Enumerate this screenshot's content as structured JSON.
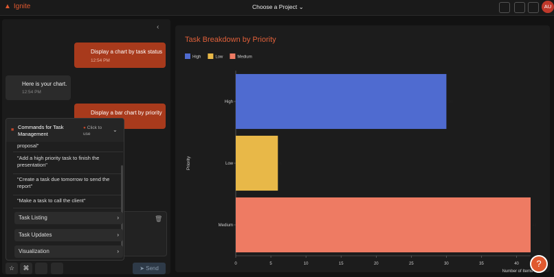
{
  "header": {
    "brand": "Ignite",
    "project_picker": "Choose a Project",
    "avatar": "AU"
  },
  "chat": {
    "messages": [
      {
        "role": "user",
        "text": "Display a chart by task status",
        "time": "12:54 PM"
      },
      {
        "role": "bot",
        "text": "Here is your chart.",
        "time": "12:54 PM"
      },
      {
        "role": "user",
        "text": "Display a bar chart by priority"
      }
    ]
  },
  "commands": {
    "title": "Commands for Task Management",
    "hint": "Click to use",
    "items": [
      "proposal\"",
      "\"Add a high priority task to finish the presentation\"",
      "\"Create a task due tomorrow to send the report\"",
      "\"Make a task to call the client\""
    ],
    "sections": [
      "Task Listing",
      "Task Updates",
      "Visualization"
    ]
  },
  "input": {
    "send": "Send"
  },
  "help": "?",
  "chart_data": {
    "type": "hbar",
    "title": "Task Breakdown by Priority",
    "categories": [
      "High",
      "Low",
      "Medium"
    ],
    "series": [
      {
        "name": "High",
        "color": "#4f6bd0"
      },
      {
        "name": "Low",
        "color": "#e8b848"
      },
      {
        "name": "Medium",
        "color": "#ee7b63"
      }
    ],
    "values": [
      30,
      6,
      42
    ],
    "xlim": [
      0,
      42
    ],
    "xticks": [
      0,
      5,
      10,
      15,
      20,
      25,
      30,
      35,
      40
    ],
    "xlabel": "Number of Items",
    "ylabel": "Priority"
  }
}
